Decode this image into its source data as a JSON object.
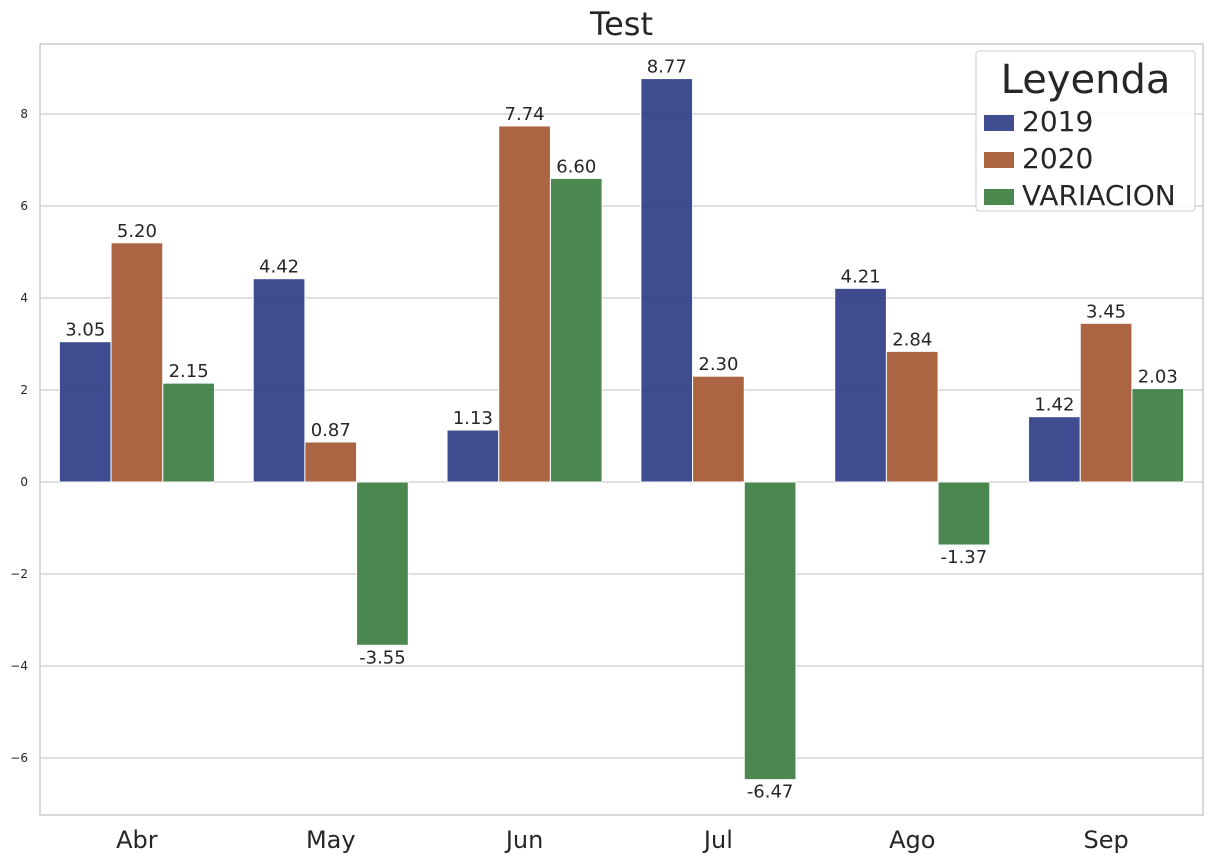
{
  "chart_data": {
    "type": "bar",
    "title": "Test",
    "xlabel": "",
    "ylabel": "",
    "categories": [
      "Abr",
      "May",
      "Jun",
      "Jul",
      "Ago",
      "Sep"
    ],
    "series": [
      {
        "name": "2019",
        "color": "#2b3a84",
        "values": [
          3.05,
          4.42,
          1.13,
          8.77,
          4.21,
          1.42
        ],
        "labels": [
          "3.05",
          "4.42",
          "1.13",
          "8.77",
          "4.21",
          "1.42"
        ]
      },
      {
        "name": "2020",
        "color": "#a4552e",
        "values": [
          5.2,
          0.87,
          7.74,
          2.3,
          2.84,
          3.45
        ],
        "labels": [
          "5.20",
          "0.87",
          "7.74",
          "2.30",
          "2.84",
          "3.45"
        ]
      },
      {
        "name": "VARIACION",
        "color": "#387c3c",
        "values": [
          2.15,
          -3.55,
          6.6,
          -6.47,
          -1.37,
          2.03
        ],
        "labels": [
          "2.15",
          "-3.55",
          "6.60",
          "-6.47",
          "-1.37",
          "2.03"
        ]
      }
    ],
    "yticks": [
      -6,
      -4,
      -2,
      0,
      2,
      4,
      6,
      8
    ],
    "ytick_labels": [
      "−6",
      "−4",
      "−2",
      "0",
      "2",
      "4",
      "6",
      "8"
    ],
    "ylim": [
      -7.2,
      9.5
    ],
    "grid": true,
    "legend": {
      "title": "Leyenda",
      "placement": "top-right"
    }
  }
}
